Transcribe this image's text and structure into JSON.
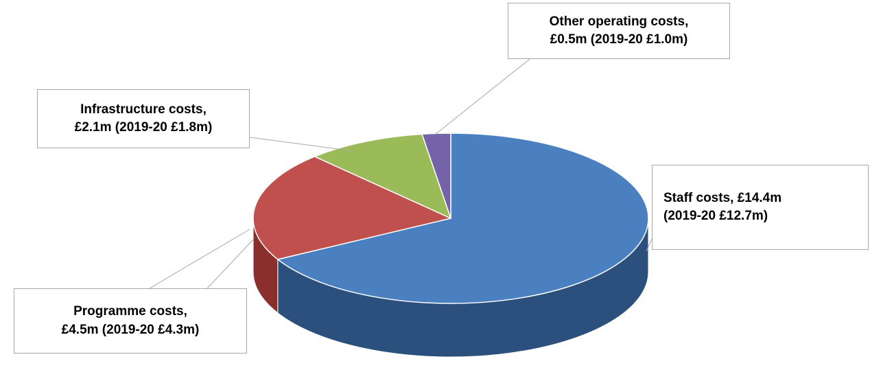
{
  "chart_data": {
    "type": "pie",
    "style": "3d",
    "title": "",
    "slices": [
      {
        "key": "staff",
        "label_line1": "Staff costs, £14.4m",
        "label_line2": "(2019-20 £12.7m)",
        "value": 14.4,
        "prior_value": 12.7,
        "color": "#4a7fc0",
        "side_color": "#2c507e"
      },
      {
        "key": "programme",
        "label_line1": "Programme costs,",
        "label_line2": "£4.5m (2019-20 £4.3m)",
        "value": 4.5,
        "prior_value": 4.3,
        "color": "#c0504d",
        "side_color": "#8a2f2c"
      },
      {
        "key": "infra",
        "label_line1": "Infrastructure costs,",
        "label_line2": "£2.1m (2019-20 £1.8m)",
        "value": 2.1,
        "prior_value": 1.8,
        "color": "#9bbb59",
        "side_color": "#6b8a36"
      },
      {
        "key": "other",
        "label_line1": "Other operating costs,",
        "label_line2": "£0.5m (2019-20 £1.0m)",
        "value": 0.5,
        "prior_value": 1.0,
        "color": "#7463a8",
        "side_color": "#4d4076"
      }
    ],
    "start_angle_deg": 0,
    "direction": "clockwise",
    "legend": "none"
  }
}
